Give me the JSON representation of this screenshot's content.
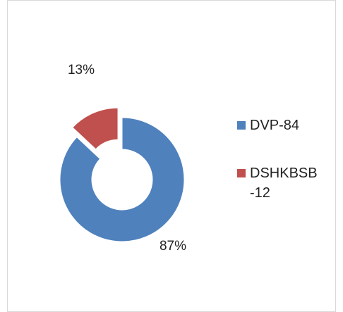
{
  "chart_data": {
    "type": "pie",
    "donut": true,
    "categories": [
      "DVP-84",
      "DSHKBSB-12"
    ],
    "values": [
      87,
      13
    ],
    "value_labels": [
      "87%",
      "13%"
    ],
    "colors": [
      "#4f81bd",
      "#c0504d"
    ],
    "exploded": [
      false,
      true
    ]
  }
}
